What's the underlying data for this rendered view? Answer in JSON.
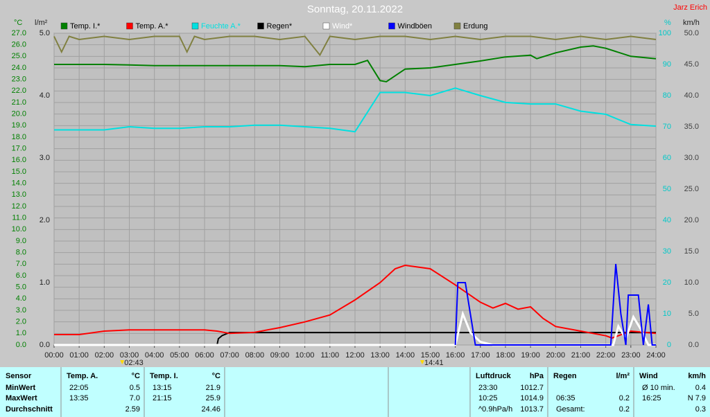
{
  "chart_data": {
    "type": "line",
    "title": "Sonntag, 20.11.2022",
    "author": "Jarz Erich",
    "y_label": "°C",
    "y2_label": "l/m²",
    "y3_label": "%",
    "y4_label": "km/h",
    "xlim": [
      0,
      24
    ],
    "xticks": [
      {
        "value": 0,
        "label": "00:00"
      },
      {
        "value": 1,
        "label": "01:00"
      },
      {
        "value": 2,
        "label": "02:00"
      },
      {
        "value": 3,
        "label": "03:00"
      },
      {
        "value": 4,
        "label": "04:00"
      },
      {
        "value": 5,
        "label": "05:00"
      },
      {
        "value": 6,
        "label": "06:00"
      },
      {
        "value": 7,
        "label": "07:00"
      },
      {
        "value": 8,
        "label": "08:00"
      },
      {
        "value": 9,
        "label": "09:00"
      },
      {
        "value": 10,
        "label": "10:00"
      },
      {
        "value": 11,
        "label": "11:00"
      },
      {
        "value": 12,
        "label": "12:00"
      },
      {
        "value": 13,
        "label": "13:00"
      },
      {
        "value": 14,
        "label": "14:00"
      },
      {
        "value": 15,
        "label": "15:00"
      },
      {
        "value": 16,
        "label": "16:00"
      },
      {
        "value": 17,
        "label": "17:00"
      },
      {
        "value": 18,
        "label": "18:00"
      },
      {
        "value": 19,
        "label": "19:00"
      },
      {
        "value": 20,
        "label": "20:00"
      },
      {
        "value": 21,
        "label": "21:00"
      },
      {
        "value": 22,
        "label": "22:00"
      },
      {
        "value": 23,
        "label": "23:00"
      },
      {
        "value": 24,
        "label": "24:00"
      }
    ],
    "ylim": [
      0,
      27
    ],
    "yticks": [
      {
        "value": 0,
        "label": "0.0"
      },
      {
        "value": 1,
        "label": "1.0"
      },
      {
        "value": 2,
        "label": "2.0"
      },
      {
        "value": 3,
        "label": "3.0"
      },
      {
        "value": 4,
        "label": "4.0"
      },
      {
        "value": 5,
        "label": "5.0"
      },
      {
        "value": 6,
        "label": "6.0"
      },
      {
        "value": 7,
        "label": "7.0"
      },
      {
        "value": 8,
        "label": "8.0"
      },
      {
        "value": 9,
        "label": "9.0"
      },
      {
        "value": 10,
        "label": "10.0"
      },
      {
        "value": 11,
        "label": "11.0"
      },
      {
        "value": 12,
        "label": "12.0"
      },
      {
        "value": 13,
        "label": "13.0"
      },
      {
        "value": 14,
        "label": "14.0"
      },
      {
        "value": 15,
        "label": "15.0"
      },
      {
        "value": 16,
        "label": "16.0"
      },
      {
        "value": 17,
        "label": "17.0"
      },
      {
        "value": 18,
        "label": "18.0"
      },
      {
        "value": 19,
        "label": "19.0"
      },
      {
        "value": 20,
        "label": "20.0"
      },
      {
        "value": 21,
        "label": "21.0"
      },
      {
        "value": 22,
        "label": "22.0"
      },
      {
        "value": 23,
        "label": "23.0"
      },
      {
        "value": 24,
        "label": "24.0"
      },
      {
        "value": 25,
        "label": "25.0"
      },
      {
        "value": 26,
        "label": "26.0"
      },
      {
        "value": 27,
        "label": "27.0"
      }
    ],
    "y2lim": [
      0,
      5
    ],
    "y2ticks": [
      {
        "value": 0,
        "label": "0.0"
      },
      {
        "value": 1,
        "label": "1.0"
      },
      {
        "value": 2,
        "label": "2.0"
      },
      {
        "value": 3,
        "label": "3.0"
      },
      {
        "value": 4,
        "label": "4.0"
      },
      {
        "value": 5,
        "label": "5.0"
      }
    ],
    "y3lim": [
      0,
      100
    ],
    "y3ticks": [
      0,
      10,
      20,
      30,
      40,
      50,
      60,
      70,
      80,
      90,
      100
    ],
    "y4lim": [
      0,
      50
    ],
    "y4ticks": [
      {
        "value": 0,
        "label": "0.0"
      },
      {
        "value": 5,
        "label": "5.0"
      },
      {
        "value": 10,
        "label": "10.0"
      },
      {
        "value": 15,
        "label": "15.0"
      },
      {
        "value": 20,
        "label": "20.0"
      },
      {
        "value": 25,
        "label": "25.0"
      },
      {
        "value": 30,
        "label": "30.0"
      },
      {
        "value": 35,
        "label": "35.0"
      },
      {
        "value": 40,
        "label": "40.0"
      },
      {
        "value": 45,
        "label": "45.0"
      },
      {
        "value": 50,
        "label": "50.0"
      }
    ],
    "grid": true,
    "series": [
      {
        "name": "Temp. I.*",
        "color": "#008000",
        "axis": "y",
        "x": [
          0,
          1,
          2,
          3,
          4,
          5,
          6,
          7,
          8,
          9,
          10,
          11,
          12,
          12.5,
          13,
          13.25,
          14,
          15,
          16,
          17,
          18,
          19,
          19.25,
          20,
          21,
          21.5,
          22,
          23,
          24
        ],
        "values": [
          24.3,
          24.3,
          24.3,
          24.25,
          24.2,
          24.2,
          24.2,
          24.2,
          24.2,
          24.2,
          24.1,
          24.3,
          24.3,
          24.65,
          22.9,
          22.8,
          23.9,
          24,
          24.3,
          24.6,
          24.95,
          25.1,
          24.8,
          25.3,
          25.8,
          25.9,
          25.7,
          25,
          24.8
        ]
      },
      {
        "name": "Temp. A.*",
        "color": "#ff0000",
        "axis": "y",
        "x": [
          0,
          1,
          2,
          3,
          4,
          5,
          6,
          6.5,
          7,
          8,
          9,
          10,
          11,
          12,
          13,
          13.6,
          14,
          15,
          16,
          17,
          17.5,
          18,
          18.5,
          19,
          19.5,
          20,
          21,
          22,
          22.25,
          23,
          24
        ],
        "values": [
          0.9,
          0.9,
          1.2,
          1.3,
          1.3,
          1.3,
          1.3,
          1.2,
          1.0,
          1.1,
          1.5,
          2.0,
          2.6,
          3.9,
          5.4,
          6.6,
          6.9,
          6.6,
          5.2,
          3.7,
          3.2,
          3.6,
          3.1,
          3.3,
          2.3,
          1.6,
          1.2,
          0.8,
          0.6,
          1.2,
          1.0
        ]
      },
      {
        "name": "Feuchte A.*",
        "color": "#00e0e0",
        "axis": "y3",
        "x": [
          0,
          1,
          2,
          3,
          4,
          5,
          6,
          7,
          8,
          9,
          10,
          11,
          12,
          13,
          14,
          15,
          16,
          17,
          18,
          19,
          20,
          21,
          22,
          23,
          24
        ],
        "values": [
          69,
          69,
          69,
          70,
          69.5,
          69.5,
          70,
          70,
          70.5,
          70.5,
          70,
          69.5,
          68.4,
          81,
          81,
          80,
          82.4,
          80,
          77.8,
          77.3,
          77.3,
          75,
          74,
          70.7,
          70.2
        ]
      },
      {
        "name": "Regen*",
        "color": "#000000",
        "axis": "y2",
        "x": [
          0,
          6.5,
          6.55,
          6.7,
          7,
          24
        ],
        "values": [
          0,
          0,
          0.1,
          0.15,
          0.2,
          0.2
        ]
      },
      {
        "name": "Wind*",
        "color": "#ffffff",
        "axis": "y4",
        "x": [
          0,
          16,
          16.3,
          16.6,
          17,
          17.5,
          22.3,
          22.5,
          22.8,
          23.1,
          23.4,
          23.7,
          24
        ],
        "values": [
          0,
          0,
          5,
          2,
          0.5,
          0,
          0,
          3,
          1,
          4.5,
          2.5,
          0,
          0
        ]
      },
      {
        "name": "Windböen",
        "color": "#0000ff",
        "axis": "y4",
        "x": [
          16,
          16.1,
          16.4,
          16.8,
          22.2,
          22.4,
          22.6,
          22.8,
          22.9,
          23.3,
          23.5,
          23.7,
          23.85,
          24
        ],
        "values": [
          0,
          10,
          10,
          0,
          0,
          13,
          5,
          0,
          8,
          8,
          0,
          6.5,
          0,
          0
        ]
      },
      {
        "name": "Erdung",
        "color": "#808040",
        "axis": "y3",
        "x": [
          0,
          0.3,
          0.6,
          1,
          2,
          3,
          4,
          5,
          5.3,
          5.6,
          6,
          7,
          8,
          9,
          10,
          10.6,
          11,
          12,
          13,
          14,
          15,
          16,
          17,
          18,
          19,
          20,
          21,
          22,
          23,
          24
        ],
        "values": [
          99,
          94,
          99,
          98,
          99,
          98,
          99,
          99,
          94,
          99,
          98,
          99,
          99,
          98,
          99,
          93,
          99,
          98,
          99,
          99,
          98,
          99,
          98,
          99,
          99,
          98,
          99,
          98,
          99,
          98
        ]
      }
    ],
    "annotations": [
      {
        "x": 2.7167,
        "label": "02:43"
      },
      {
        "x": 14.6833,
        "label": "14:41"
      }
    ]
  },
  "table": {
    "groups": [
      {
        "header": [
          "Sensor"
        ],
        "rows": [
          [
            "MinWert"
          ],
          [
            "MaxWert"
          ],
          [
            "Durchschnitt"
          ]
        ]
      },
      {
        "header": [
          "Temp. A.",
          "°C"
        ],
        "rows": [
          [
            "22:05",
            "0.5"
          ],
          [
            "13:35",
            "7.0"
          ],
          [
            null,
            "2.59"
          ]
        ]
      },
      {
        "header": [
          "Temp. I.",
          "°C"
        ],
        "rows": [
          [
            "13:15",
            "21.9"
          ],
          [
            "21:15",
            "25.9"
          ],
          [
            null,
            "24.46"
          ]
        ]
      },
      {
        "header": [
          "Luftdruck",
          "hPa"
        ],
        "rows": [
          [
            "23:30",
            "1012.7"
          ],
          [
            "10:25",
            "1014.9"
          ],
          [
            "^0.9hPa/h",
            "1013.7"
          ]
        ]
      },
      {
        "header": [
          "Regen",
          "l/m²"
        ],
        "rows": [
          [
            null,
            null
          ],
          [
            "06:35",
            "0.2"
          ],
          [
            "Gesamt:",
            "0.2"
          ]
        ]
      },
      {
        "header": [
          "Wind",
          "km/h"
        ],
        "rows": [
          [
            "Ø 10 min.",
            "0.4"
          ],
          [
            "16:25",
            "N 7.9"
          ],
          [
            null,
            "0.3"
          ]
        ]
      }
    ]
  }
}
